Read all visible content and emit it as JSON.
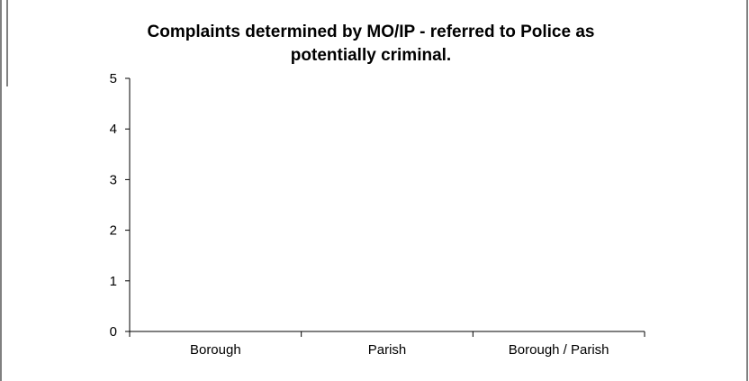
{
  "chart_data": {
    "type": "bar",
    "title_lines": [
      "Complaints determined by MO/IP - referred to Police as",
      "potentially criminal."
    ],
    "categories": [
      "Borough",
      "Parish",
      "Borough / Parish"
    ],
    "values": [
      0,
      0,
      0
    ],
    "ylim": [
      0,
      5
    ],
    "yticks": [
      "0",
      "1",
      "2",
      "3",
      "4",
      "5"
    ],
    "xlabel": "",
    "ylabel": "",
    "grid": false,
    "colors": {
      "axis": "#000000",
      "frame": "#000000",
      "bar": "#9999ff"
    }
  }
}
